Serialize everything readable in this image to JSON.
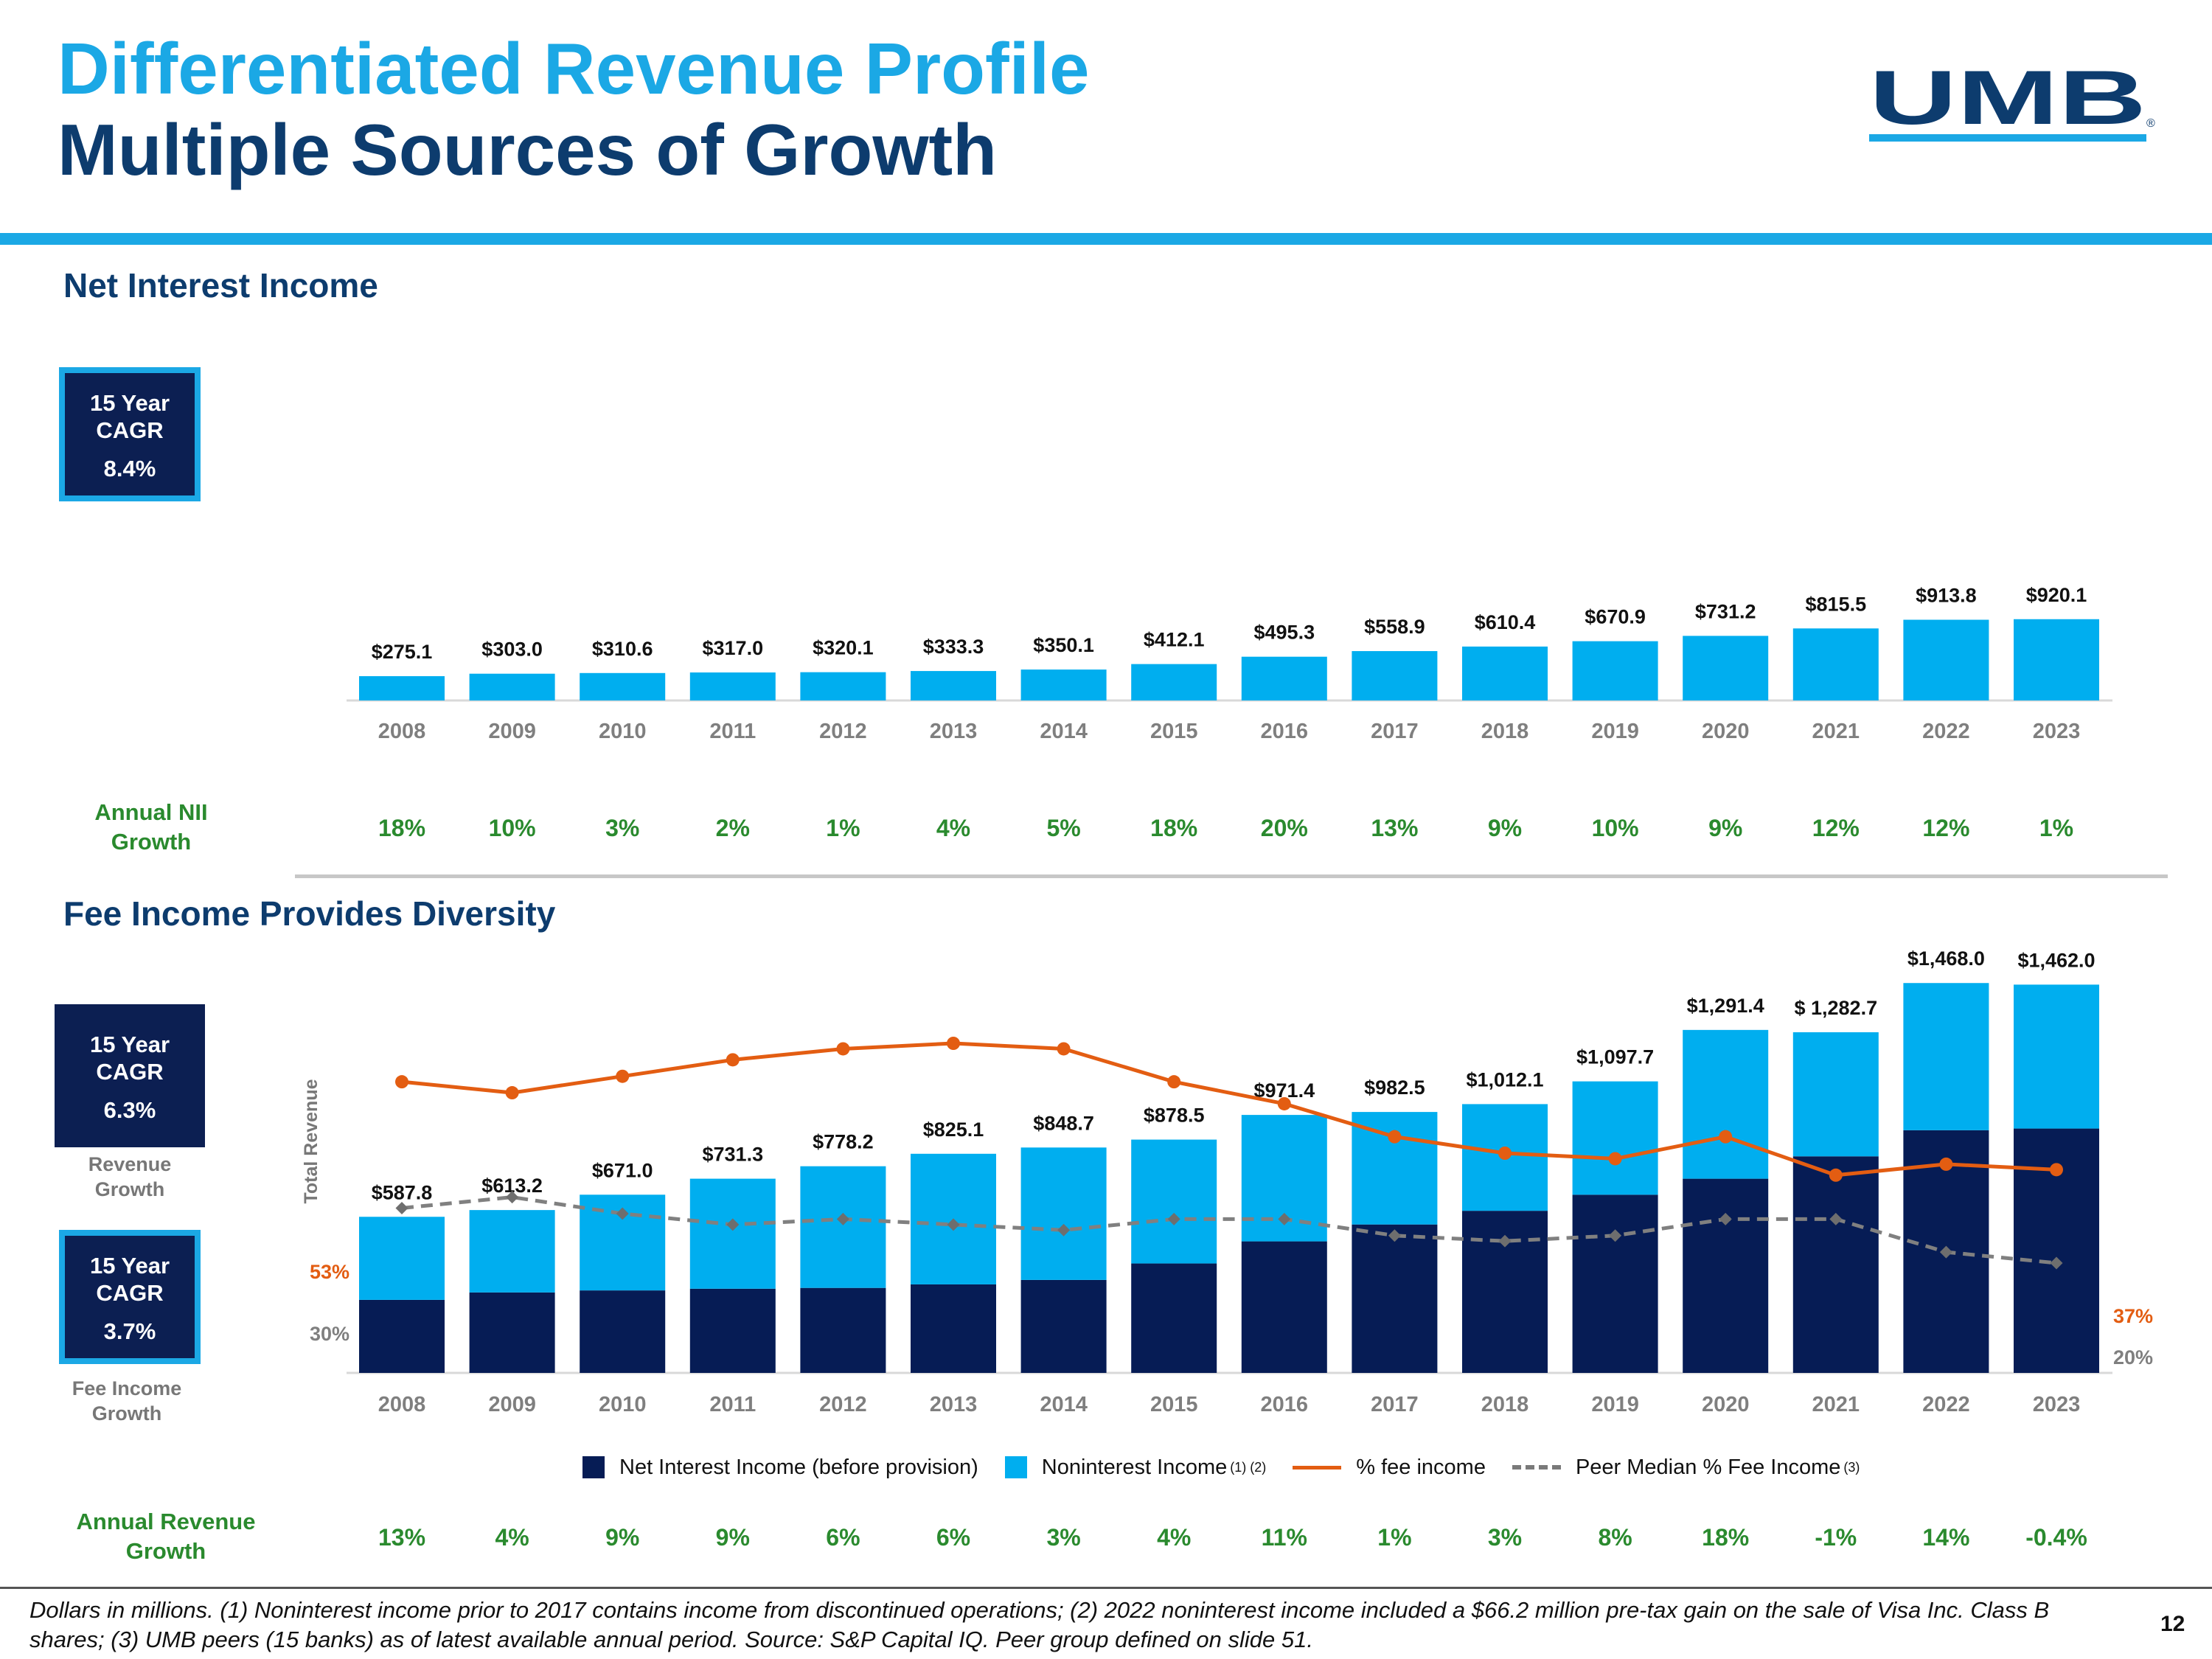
{
  "header": {
    "title_line1": "Differentiated Revenue Profile",
    "title_line2": "Multiple Sources of Growth",
    "logo_text": "UMB",
    "logo_mark": "®"
  },
  "nii_section": {
    "title": "Net Interest Income",
    "cagr_label_line1": "15 Year",
    "cagr_label_line2": "CAGR",
    "cagr_value": "8.4%",
    "growth_label_line1": "Annual NII",
    "growth_label_line2": "Growth",
    "growth_values": [
      "18%",
      "10%",
      "3%",
      "2%",
      "1%",
      "4%",
      "5%",
      "18%",
      "20%",
      "13%",
      "9%",
      "10%",
      "9%",
      "12%",
      "12%",
      "1%"
    ]
  },
  "fee_section": {
    "title": "Fee Income Provides Diversity",
    "cagr_revenue_line1": "15 Year",
    "cagr_revenue_line2": "CAGR",
    "cagr_revenue_value": "6.3%",
    "cagr_revenue_caption_line1": "Revenue",
    "cagr_revenue_caption_line2": "Growth",
    "cagr_fee_line1": "15 Year",
    "cagr_fee_line2": "CAGR",
    "cagr_fee_value": "3.7%",
    "cagr_fee_caption_line1": "Fee Income",
    "cagr_fee_caption_line2": "Growth",
    "growth_label_line1": "Annual Revenue",
    "growth_label_line2": "Growth",
    "growth_values": [
      "13%",
      "4%",
      "9%",
      "9%",
      "6%",
      "6%",
      "3%",
      "4%",
      "11%",
      "1%",
      "3%",
      "8%",
      "18%",
      "-1%",
      "14%",
      "-0.4%"
    ]
  },
  "legend": {
    "nii": "Net Interest Income (before provision)",
    "nonint": "Noninterest Income",
    "nonint_sup": "(1) (2)",
    "fee_pct": "% fee income",
    "peer": "Peer Median % Fee Income",
    "peer_sup": "(3)"
  },
  "colors": {
    "light_blue": "#00aeef",
    "navy": "#061c55",
    "orange": "#e35d12",
    "gray": "#808080",
    "green": "#2a8a2e",
    "title_blue": "#1ba8e5",
    "title_navy": "#0d3c6e"
  },
  "footnote": "Dollars in millions. (1) Noninterest income prior to 2017 contains income from discontinued operations; (2) 2022 noninterest income included a $66.2 million pre-tax gain on the sale of Visa Inc. Class B shares; (3) UMB peers (15 banks) as of latest available annual period. Source: S&P Capital IQ. Peer group defined on slide 51.",
  "page_number": "12",
  "chart_data": [
    {
      "type": "bar",
      "categories": [
        "2008",
        "2009",
        "2010",
        "2011",
        "2012",
        "2013",
        "2014",
        "2015",
        "2016",
        "2017",
        "2018",
        "2019",
        "2020",
        "2021",
        "2022",
        "2023"
      ],
      "values": [
        275.1,
        303.0,
        310.6,
        317.0,
        320.1,
        333.3,
        350.1,
        412.1,
        495.3,
        558.9,
        610.4,
        670.9,
        731.2,
        815.5,
        913.8,
        920.1
      ],
      "labels": [
        "$275.1",
        "$303.0",
        "$310.6",
        "$317.0",
        "$320.1",
        "$333.3",
        "$350.1",
        "$412.1",
        "$495.3",
        "$558.9",
        "$610.4",
        "$670.9",
        "$731.2",
        "$815.5",
        "$913.8",
        "$920.1"
      ],
      "ylim": [
        0,
        1000
      ]
    },
    {
      "type": "bar",
      "stacked": true,
      "categories": [
        "2008",
        "2009",
        "2010",
        "2011",
        "2012",
        "2013",
        "2014",
        "2015",
        "2016",
        "2017",
        "2018",
        "2019",
        "2020",
        "2021",
        "2022",
        "2023"
      ],
      "ylabel": "Total Revenue",
      "totals": [
        587.8,
        613.2,
        671.0,
        731.3,
        778.2,
        825.1,
        848.7,
        878.5,
        971.4,
        982.5,
        1012.1,
        1097.7,
        1291.4,
        1282.7,
        1468.0,
        1462.0
      ],
      "total_labels": [
        "$587.8",
        "$613.2",
        "$671.0",
        "$731.3",
        "$778.2",
        "$825.1",
        "$848.7",
        "$878.5",
        "$971.4",
        "$982.5",
        "$1,012.1",
        "$1,097.7",
        "$1,291.4",
        "$ 1,282.7",
        "$1,468.0",
        "$1,462.0"
      ],
      "series": [
        {
          "name": "Net Interest Income (before provision)",
          "values": [
            275.1,
            303.0,
            310.6,
            317.0,
            320.1,
            333.3,
            350.1,
            412.1,
            495.3,
            558.9,
            610.4,
            670.9,
            731.2,
            815.5,
            913.8,
            920.1
          ]
        },
        {
          "name": "Noninterest Income",
          "values": [
            312.7,
            310.2,
            360.4,
            414.3,
            458.1,
            491.8,
            498.6,
            466.4,
            476.1,
            423.6,
            401.7,
            426.8,
            560.2,
            467.2,
            554.2,
            541.9
          ]
        }
      ],
      "lines": [
        {
          "name": "% fee income",
          "values": [
            53,
            51,
            54,
            57,
            59,
            60,
            59,
            53,
            49,
            43,
            40,
            39,
            43,
            36,
            38,
            37
          ],
          "start_label": "53%",
          "end_label": "37%"
        },
        {
          "name": "Peer Median % Fee Income",
          "values": [
            30,
            32,
            29,
            27,
            28,
            27,
            26,
            28,
            28,
            25,
            24,
            25,
            28,
            28,
            22,
            20
          ],
          "start_label": "30%",
          "end_label": "20%"
        }
      ],
      "ylim": [
        0,
        1500
      ]
    }
  ]
}
